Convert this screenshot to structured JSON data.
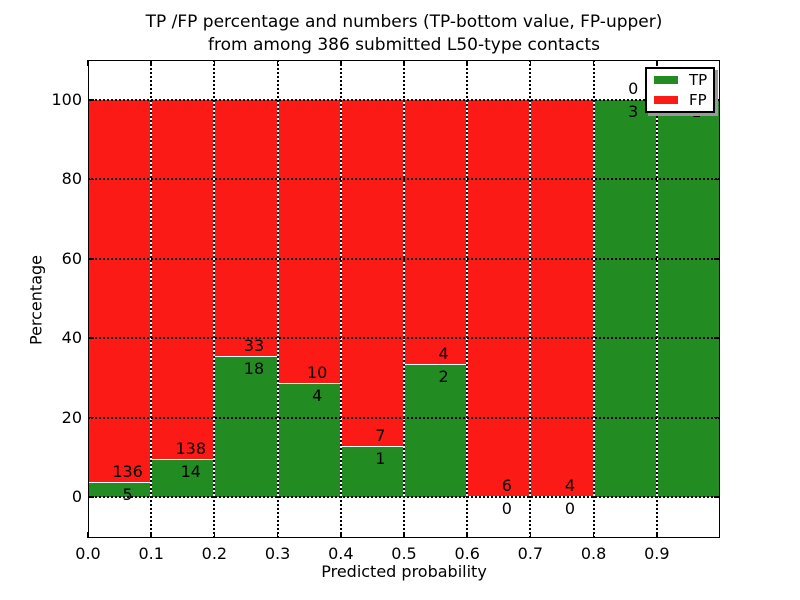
{
  "title": {
    "line1": "TP /FP percentage and numbers (TP-bottom value, FP-upper)",
    "line2": "from among 386 submitted L50-type contacts"
  },
  "axes": {
    "xlabel": "Predicted probability",
    "ylabel": "Percentage",
    "xticks": [
      "0.0",
      "0.1",
      "0.2",
      "0.3",
      "0.4",
      "0.5",
      "0.6",
      "0.7",
      "0.8",
      "0.9"
    ],
    "yticks": [
      "0",
      "20",
      "40",
      "60",
      "80",
      "100"
    ],
    "xlim": [
      0.0,
      1.0
    ],
    "ylim": [
      -10.8,
      110.1
    ],
    "grid": "dotted"
  },
  "legend": {
    "position": "upper right",
    "entries": [
      {
        "label": "TP",
        "color": "#228b22"
      },
      {
        "label": "FP",
        "color": "#fc1a17"
      }
    ]
  },
  "colors": {
    "tp": "#228b22",
    "fp": "#fc1a17",
    "grid": "#000000",
    "background": "#ffffff",
    "bar_edge": "#ffffff"
  },
  "chart_data": {
    "type": "bar",
    "stacked": true,
    "normalized_to_percent": true,
    "title": "TP /FP percentage and numbers (TP-bottom value, FP-upper) from among 386 submitted L50-type contacts",
    "xlabel": "Predicted probability",
    "ylabel": "Percentage",
    "bin_width": 0.1,
    "categories": [
      "0.0-0.1",
      "0.1-0.2",
      "0.2-0.3",
      "0.3-0.4",
      "0.4-0.5",
      "0.5-0.6",
      "0.6-0.7",
      "0.7-0.8",
      "0.8-0.9",
      "0.9-1.0"
    ],
    "series": [
      {
        "name": "TP",
        "counts": [
          5,
          14,
          18,
          4,
          1,
          2,
          0,
          0,
          3,
          1
        ]
      },
      {
        "name": "FP",
        "counts": [
          136,
          138,
          33,
          10,
          7,
          4,
          6,
          4,
          0,
          0
        ]
      }
    ],
    "tp_percent": [
      3.5,
      9.2,
      35.3,
      28.6,
      12.5,
      33.3,
      0.0,
      0.0,
      100.0,
      100.0
    ],
    "total_contacts": 386,
    "xlim": [
      0.0,
      1.0
    ],
    "ylim": [
      -10.8,
      110.1
    ]
  }
}
